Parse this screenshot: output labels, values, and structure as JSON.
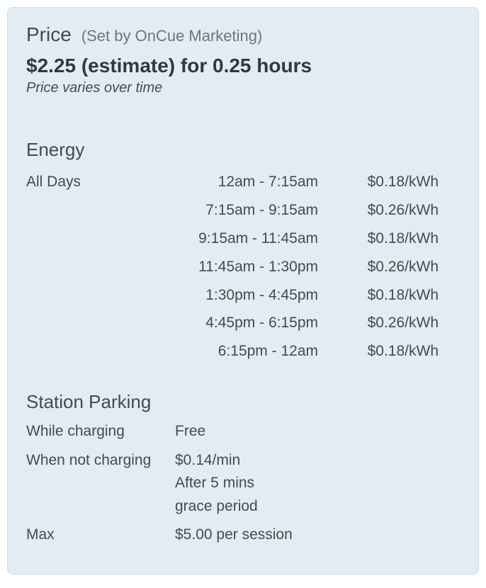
{
  "colors": {
    "card_bg": "#e3ecf2",
    "card_border": "#cfdbe4",
    "text_primary": "#3e4c55",
    "text_secondary": "#687783",
    "text_bold": "#2c3a43"
  },
  "header": {
    "title": "Price",
    "subtitle": "(Set by OnCue Marketing)",
    "estimate": "$2.25 (estimate) for 0.25 hours",
    "note": "Price varies over time"
  },
  "energy": {
    "section_title": "Energy",
    "day_label": "All Days",
    "rows": [
      {
        "time": "12am - 7:15am",
        "rate": "$0.18/kWh"
      },
      {
        "time": "7:15am - 9:15am",
        "rate": "$0.26/kWh"
      },
      {
        "time": "9:15am - 11:45am",
        "rate": "$0.18/kWh"
      },
      {
        "time": "11:45am - 1:30pm",
        "rate": "$0.26/kWh"
      },
      {
        "time": "1:30pm - 4:45pm",
        "rate": "$0.18/kWh"
      },
      {
        "time": "4:45pm - 6:15pm",
        "rate": "$0.26/kWh"
      },
      {
        "time": "6:15pm - 12am",
        "rate": "$0.18/kWh"
      }
    ]
  },
  "parking": {
    "section_title": "Station Parking",
    "rows": [
      {
        "label": "While charging",
        "value": "Free"
      },
      {
        "label": "When not charging",
        "value": "$0.14/min\nAfter 5 mins\ngrace period"
      },
      {
        "label": "Max",
        "value": "$5.00 per session"
      }
    ]
  }
}
